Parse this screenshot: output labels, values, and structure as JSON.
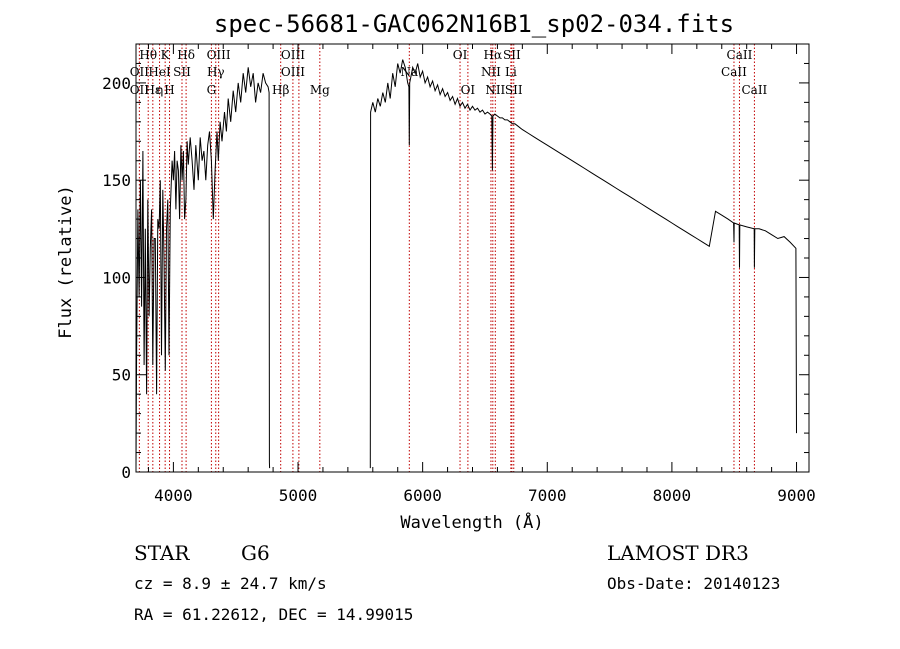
{
  "chart_data": {
    "type": "line",
    "title": "spec-56681-GAC062N16B1_sp02-034.fits",
    "xlabel": "Wavelength (Å)",
    "ylabel": "Flux (relative)",
    "xlim": [
      3700,
      9100
    ],
    "ylim": [
      0,
      220
    ],
    "xticks": [
      4000,
      5000,
      6000,
      7000,
      8000,
      9000
    ],
    "yticks": [
      0,
      50,
      100,
      150,
      200
    ],
    "series": [
      {
        "name": "spectrum",
        "segments": [
          [
            [
              3700,
              2
            ],
            [
              3705,
              60
            ],
            [
              3715,
              135
            ],
            [
              3725,
              90
            ],
            [
              3735,
              150
            ],
            [
              3745,
              85
            ],
            [
              3755,
              165
            ],
            [
              3765,
              55
            ],
            [
              3775,
              125
            ],
            [
              3785,
              40
            ],
            [
              3795,
              140
            ],
            [
              3805,
              80
            ],
            [
              3815,
              115
            ],
            [
              3825,
              135
            ],
            [
              3835,
              55
            ],
            [
              3845,
              120
            ],
            [
              3855,
              120
            ],
            [
              3865,
              40
            ],
            [
              3875,
              130
            ],
            [
              3885,
              125
            ],
            [
              3895,
              150
            ],
            [
              3905,
              60
            ],
            [
              3915,
              145
            ],
            [
              3925,
              110
            ],
            [
              3935,
              52
            ],
            [
              3945,
              125
            ],
            [
              3955,
              140
            ],
            [
              3965,
              60
            ],
            [
              3975,
              135
            ],
            [
              3990,
              160
            ],
            [
              4000,
              150
            ],
            [
              4010,
              165
            ],
            [
              4020,
              135
            ],
            [
              4030,
              160
            ],
            [
              4040,
              155
            ],
            [
              4050,
              130
            ],
            [
              4060,
              168
            ],
            [
              4070,
              150
            ],
            [
              4080,
              165
            ],
            [
              4090,
              130
            ],
            [
              4100,
              140
            ],
            [
              4110,
              170
            ],
            [
              4120,
              158
            ],
            [
              4135,
              172
            ],
            [
              4150,
              160
            ],
            [
              4165,
              145
            ],
            [
              4180,
              168
            ],
            [
              4200,
              150
            ],
            [
              4215,
              172
            ],
            [
              4230,
              160
            ],
            [
              4245,
              165
            ],
            [
              4260,
              150
            ],
            [
              4275,
              168
            ],
            [
              4290,
              175
            ],
            [
              4305,
              160
            ],
            [
              4320,
              130
            ],
            [
              4335,
              155
            ],
            [
              4350,
              175
            ],
            [
              4360,
              160
            ],
            [
              4375,
              180
            ],
            [
              4390,
              170
            ],
            [
              4410,
              185
            ],
            [
              4425,
              175
            ],
            [
              4440,
              192
            ],
            [
              4460,
              180
            ],
            [
              4480,
              196
            ],
            [
              4500,
              185
            ],
            [
              4520,
              200
            ],
            [
              4540,
              190
            ],
            [
              4560,
              205
            ],
            [
              4580,
              195
            ],
            [
              4600,
              208
            ],
            [
              4620,
              198
            ],
            [
              4640,
              205
            ],
            [
              4660,
              190
            ],
            [
              4680,
              200
            ],
            [
              4700,
              195
            ],
            [
              4720,
              205
            ],
            [
              4740,
              200
            ],
            [
              4760,
              198
            ],
            [
              4768,
              195
            ],
            [
              4770,
              5
            ],
            [
              4772,
              2
            ]
          ],
          [
            [
              5580,
              2
            ],
            [
              5582,
              185
            ],
            [
              5600,
              190
            ],
            [
              5620,
              185
            ],
            [
              5640,
              192
            ],
            [
              5660,
              188
            ],
            [
              5680,
              195
            ],
            [
              5700,
              190
            ],
            [
              5720,
              200
            ],
            [
              5740,
              192
            ],
            [
              5760,
              205
            ],
            [
              5780,
              198
            ],
            [
              5800,
              210
            ],
            [
              5820,
              205
            ],
            [
              5840,
              212
            ],
            [
              5860,
              208
            ],
            [
              5880,
              200
            ],
            [
              5890,
              198
            ],
            [
              5893,
              168
            ],
            [
              5896,
              200
            ],
            [
              5920,
              208
            ],
            [
              5940,
              205
            ],
            [
              5960,
              210
            ],
            [
              5980,
              203
            ],
            [
              6000,
              206
            ],
            [
              6020,
              200
            ],
            [
              6040,
              203
            ],
            [
              6060,
              198
            ],
            [
              6080,
              201
            ],
            [
              6100,
              196
            ],
            [
              6120,
              199
            ],
            [
              6140,
              194
            ],
            [
              6160,
              197
            ],
            [
              6180,
              193
            ],
            [
              6200,
              195
            ],
            [
              6220,
              191
            ],
            [
              6240,
              193
            ],
            [
              6260,
              189
            ],
            [
              6280,
              192
            ],
            [
              6300,
              188
            ],
            [
              6320,
              190
            ],
            [
              6340,
              187
            ],
            [
              6360,
              189
            ],
            [
              6380,
              186
            ],
            [
              6400,
              188
            ],
            [
              6420,
              186
            ],
            [
              6440,
              187
            ],
            [
              6460,
              185
            ],
            [
              6480,
              186
            ],
            [
              6500,
              184
            ],
            [
              6520,
              185
            ],
            [
              6540,
              184
            ],
            [
              6555,
              183
            ],
            [
              6560,
              155
            ],
            [
              6564,
              183
            ],
            [
              6580,
              184
            ],
            [
              6600,
              183
            ],
            [
              6620,
              182
            ],
            [
              6640,
              182
            ],
            [
              6660,
              181
            ],
            [
              6680,
              181
            ],
            [
              6700,
              180
            ],
            [
              6720,
              179
            ],
            [
              6740,
              179
            ],
            [
              6760,
              178
            ],
            [
              6780,
              177
            ],
            [
              6800,
              176
            ],
            [
              6850,
              174
            ],
            [
              6900,
              172
            ],
            [
              6950,
              170
            ],
            [
              7000,
              168
            ],
            [
              7050,
              166
            ],
            [
              7100,
              164
            ],
            [
              7150,
              162
            ],
            [
              7200,
              160
            ],
            [
              7250,
              158
            ],
            [
              7300,
              156
            ],
            [
              7350,
              154
            ],
            [
              7400,
              152
            ],
            [
              7450,
              150
            ],
            [
              7500,
              148
            ],
            [
              7550,
              146
            ],
            [
              7600,
              144
            ],
            [
              7650,
              142
            ],
            [
              7700,
              140
            ],
            [
              7750,
              138
            ],
            [
              7800,
              136
            ],
            [
              7850,
              134
            ],
            [
              7900,
              132
            ],
            [
              7950,
              130
            ],
            [
              8000,
              128
            ],
            [
              8050,
              126
            ],
            [
              8100,
              124
            ],
            [
              8150,
              122
            ],
            [
              8200,
              120
            ],
            [
              8250,
              118
            ],
            [
              8300,
              116
            ],
            [
              8350,
              134
            ],
            [
              8400,
              132
            ],
            [
              8450,
              130
            ],
            [
              8495,
              128
            ],
            [
              8498,
              118
            ],
            [
              8500,
              128
            ],
            [
              8540,
              127
            ],
            [
              8542,
              105
            ],
            [
              8545,
              127
            ],
            [
              8600,
              126
            ],
            [
              8660,
              125
            ],
            [
              8662,
              105
            ],
            [
              8665,
              125
            ],
            [
              8700,
              125
            ],
            [
              8750,
              124
            ],
            [
              8800,
              122
            ],
            [
              8850,
              120
            ],
            [
              8900,
              121
            ],
            [
              8950,
              118
            ],
            [
              8995,
              115
            ],
            [
              9000,
              20
            ]
          ]
        ]
      }
    ],
    "spectral_lines": [
      {
        "label": "Hθ",
        "x": 3798,
        "row": 0
      },
      {
        "label": "OII",
        "x": 3727,
        "row": 1
      },
      {
        "label": "OII",
        "x": 3727,
        "row": 2
      },
      {
        "label": "Hε",
        "x": 3835,
        "row": 2
      },
      {
        "label": "K",
        "x": 3934,
        "row": 0
      },
      {
        "label": "HeI",
        "x": 3889,
        "row": 1
      },
      {
        "label": "η",
        "x": 3889,
        "row": 2
      },
      {
        "label": "H",
        "x": 3969,
        "row": 2
      },
      {
        "label": "Hδ",
        "x": 4102,
        "row": 0
      },
      {
        "label": "SII",
        "x": 4069,
        "row": 1
      },
      {
        "label": "OIII",
        "x": 4363,
        "row": 0
      },
      {
        "label": "Hγ",
        "x": 4340,
        "row": 1
      },
      {
        "label": "G",
        "x": 4305,
        "row": 2
      },
      {
        "label": "OIII",
        "x": 4959,
        "row": 0
      },
      {
        "label": "OIII",
        "x": 4959,
        "row": 1
      },
      {
        "label": "Hβ",
        "x": 4861,
        "row": 2
      },
      {
        "label": "Mg",
        "x": 5175,
        "row": 2
      },
      {
        "label": "Na",
        "x": 5893,
        "row": 1
      },
      {
        "label": "OI",
        "x": 6300,
        "row": 0
      },
      {
        "label": "OI",
        "x": 6363,
        "row": 2
      },
      {
        "label": "Hα",
        "x": 6563,
        "row": 0
      },
      {
        "label": "SII",
        "x": 6716,
        "row": 0
      },
      {
        "label": "NII",
        "x": 6548,
        "row": 1
      },
      {
        "label": "Li",
        "x": 6708,
        "row": 1
      },
      {
        "label": "NII",
        "x": 6583,
        "row": 2
      },
      {
        "label": "SII",
        "x": 6731,
        "row": 2
      },
      {
        "label": "CaII",
        "x": 8542,
        "row": 0
      },
      {
        "label": "CaII",
        "x": 8498,
        "row": 1
      },
      {
        "label": "CaII",
        "x": 8662,
        "row": 2
      }
    ],
    "line_markers": [
      3727,
      3798,
      3835,
      3889,
      3934,
      3969,
      4069,
      4102,
      4305,
      4340,
      4363,
      4861,
      4959,
      5007,
      5175,
      5893,
      6300,
      6363,
      6548,
      6563,
      6583,
      6708,
      6716,
      6731,
      8498,
      8542,
      8662
    ]
  },
  "info": {
    "class": "STAR",
    "subclass": "G6",
    "survey": "LAMOST DR3",
    "cz": "cz = 8.9 ± 24.7 km/s",
    "obs_date": "Obs-Date: 20140123",
    "coords": "RA =  61.22612, DEC =  14.99015"
  },
  "colors": {
    "spectrum": "#000000",
    "line_marker": "#c00000",
    "frame": "#000000"
  }
}
